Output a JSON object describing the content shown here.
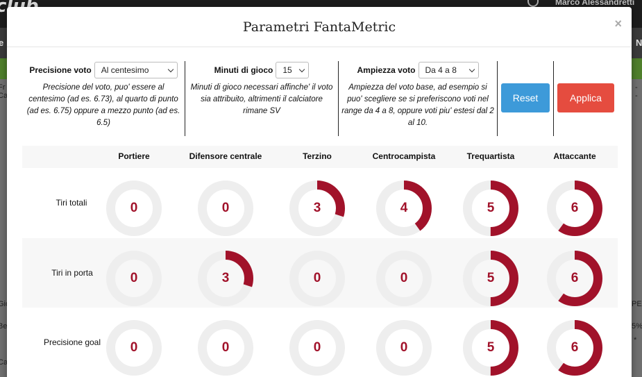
{
  "background": {
    "logo": "club",
    "user_name": "Marco Alessandretti",
    "nav_left": "e",
    "nav_right": "N",
    "side_texts_left": [
      "Fr",
      "Ca",
      "Gio",
      "Be",
      "Cal"
    ],
    "side_texts_right": [
      "-",
      "-",
      "PE",
      "5%",
      "*"
    ]
  },
  "modal": {
    "title": "Parametri FantaMetric",
    "close_label": "×"
  },
  "controls": {
    "precision": {
      "label": "Precisione voto",
      "value": "Al centesimo",
      "description": "Precisione del voto, puo' essere al centesimo (ad es. 6.73), al quarto di punto (ad es. 6.75) oppure a mezzo punto (ad es. 6.5)"
    },
    "minutes": {
      "label": "Minuti di gioco",
      "value": "15",
      "description": "Minuti di gioco necessari affinche' il voto sia attribuito, altrimenti il calciatore rimane SV"
    },
    "range": {
      "label": "Ampiezza voto",
      "value": "Da 4 a 8",
      "description": "Ampiezza del voto base, ad esempio si puo' scegliere se si preferiscono voti nel range da 4 a 8, oppure voti piu' estesi dal 2 al 10."
    },
    "reset_label": "Reset",
    "apply_label": "Applica"
  },
  "colors": {
    "accent": "#a1122a",
    "ring_track": "#eeeeee",
    "reset": "#3d9ad9",
    "apply": "#e54c3f"
  },
  "ring_max": 10,
  "columns": [
    "Portiere",
    "Difensore centrale",
    "Terzino",
    "Centrocampista",
    "Trequartista",
    "Attaccante"
  ],
  "rows": [
    {
      "label": "Tiri totali",
      "values": [
        0,
        0,
        3,
        4,
        5,
        6
      ]
    },
    {
      "label": "Tiri in porta",
      "values": [
        0,
        3,
        0,
        0,
        5,
        6
      ]
    },
    {
      "label": "Precisione goal",
      "values": [
        0,
        0,
        0,
        0,
        5,
        6
      ]
    }
  ]
}
